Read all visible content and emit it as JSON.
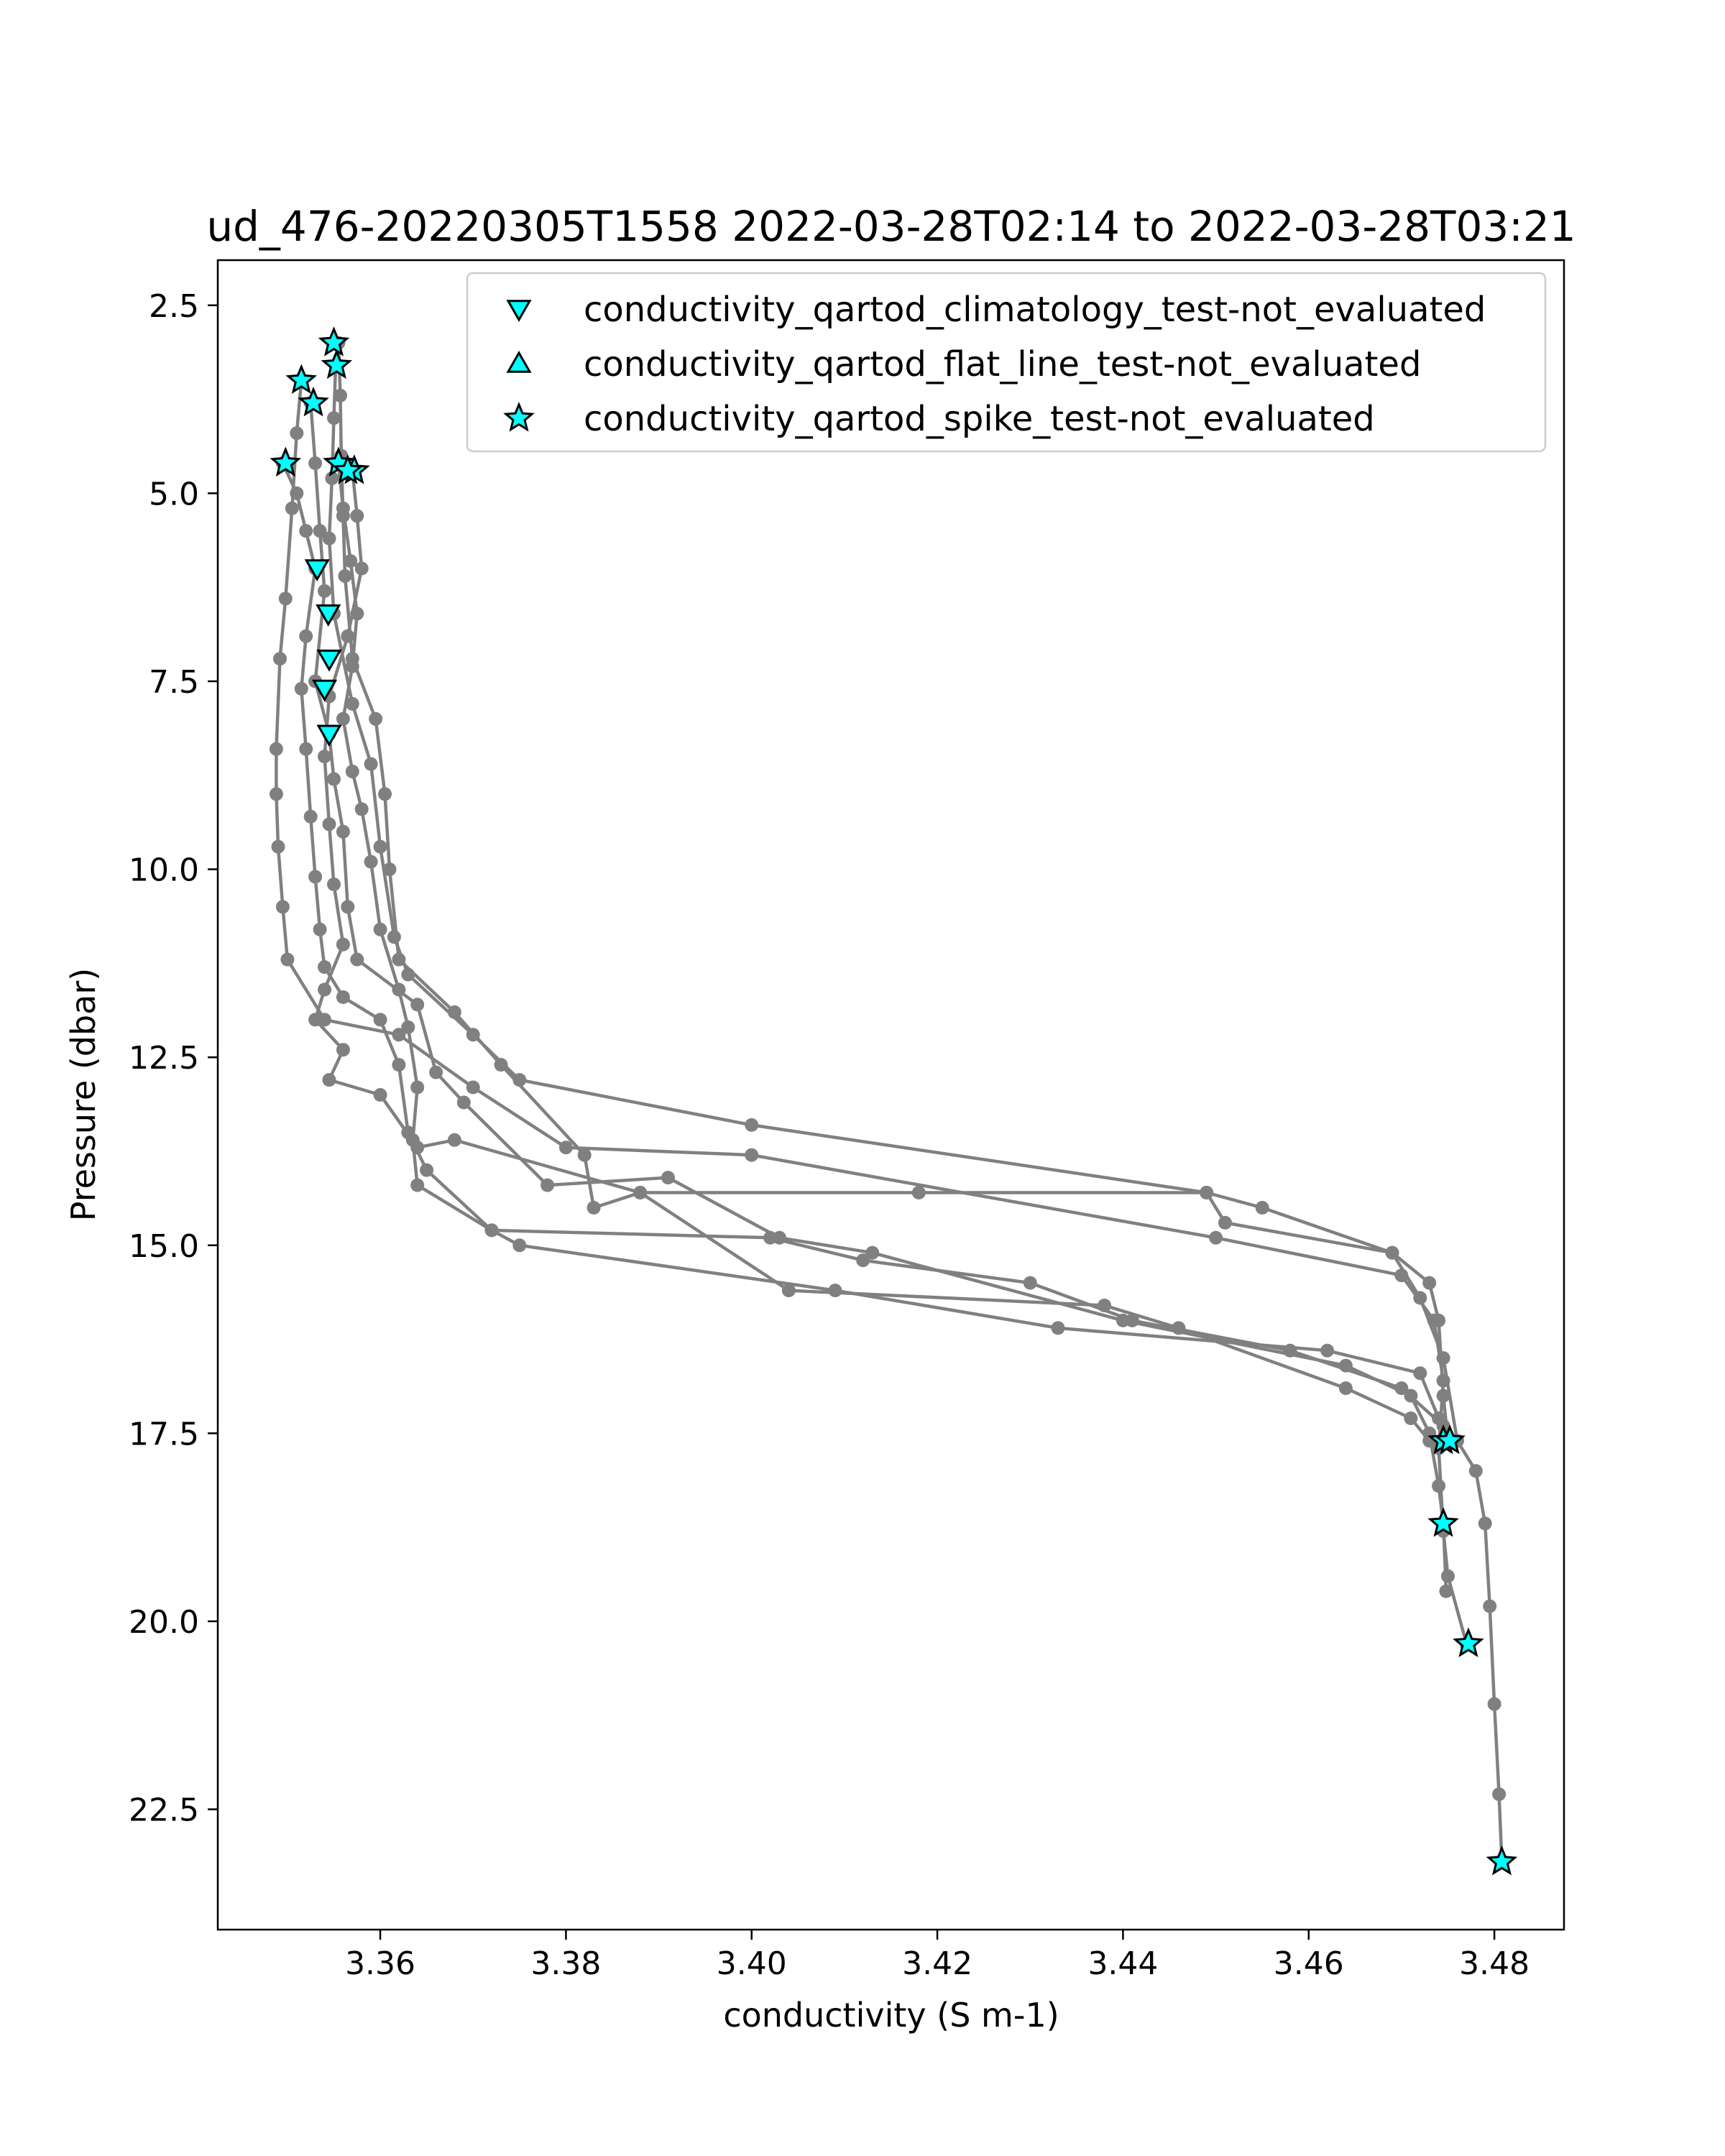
{
  "chart_data": {
    "type": "scatter",
    "title": "ud_476-20220305T1558 2022-03-28T02:14 to 2022-03-28T03:21",
    "xlabel": "conductivity (S m-1)",
    "ylabel": "Pressure (dbar)",
    "xlim": [
      3.3425,
      3.4875
    ],
    "ylim": [
      24.1,
      1.9
    ],
    "y_inverted": true,
    "x_ticks": [
      "3.36",
      "3.38",
      "3.40",
      "3.42",
      "3.44",
      "3.46",
      "3.48"
    ],
    "x_tick_values": [
      3.36,
      3.38,
      3.4,
      3.42,
      3.44,
      3.46,
      3.48
    ],
    "y_ticks": [
      "2.5",
      "5.0",
      "7.5",
      "10.0",
      "12.5",
      "15.0",
      "17.5",
      "20.0",
      "22.5"
    ],
    "y_tick_values": [
      2.5,
      5.0,
      7.5,
      10.0,
      12.5,
      15.0,
      17.5,
      20.0,
      22.5
    ],
    "grid": false,
    "legend_position": "top-right",
    "profile_color": "#808080",
    "marker_color": "#00ffff",
    "series": [
      {
        "kind": "profile",
        "points": [
          [
            3.3555,
            3.0
          ],
          [
            3.3557,
            3.7
          ],
          [
            3.3558,
            4.5
          ],
          [
            3.356,
            5.3
          ],
          [
            3.3562,
            6.1
          ],
          [
            3.357,
            7.2
          ],
          [
            3.3595,
            8.0
          ],
          [
            3.3605,
            9.0
          ],
          [
            3.361,
            10.0
          ],
          [
            3.362,
            11.2
          ],
          [
            3.368,
            11.9
          ],
          [
            3.373,
            12.6
          ],
          [
            3.382,
            13.8
          ],
          [
            3.383,
            14.5
          ],
          [
            3.388,
            14.3
          ],
          [
            3.418,
            14.3
          ],
          [
            3.449,
            14.3
          ],
          [
            3.451,
            14.7
          ],
          [
            3.469,
            15.1
          ],
          [
            3.473,
            15.5
          ],
          [
            3.474,
            16.0
          ],
          [
            3.4745,
            17.0
          ],
          [
            3.475,
            17.6
          ]
        ]
      },
      {
        "kind": "profile",
        "points": [
          [
            3.3552,
            3.3
          ],
          [
            3.355,
            4.0
          ],
          [
            3.3548,
            4.8
          ],
          [
            3.3545,
            5.6
          ],
          [
            3.355,
            6.6
          ],
          [
            3.357,
            7.8
          ],
          [
            3.359,
            8.6
          ],
          [
            3.36,
            9.7
          ],
          [
            3.3615,
            10.9
          ],
          [
            3.363,
            11.4
          ],
          [
            3.37,
            12.2
          ],
          [
            3.375,
            12.8
          ],
          [
            3.4,
            13.4
          ],
          [
            3.449,
            14.3
          ],
          [
            3.455,
            14.5
          ],
          [
            3.469,
            15.1
          ],
          [
            3.472,
            15.7
          ],
          [
            3.4745,
            16.5
          ],
          [
            3.476,
            17.6
          ],
          [
            3.478,
            18.0
          ],
          [
            3.479,
            18.7
          ],
          [
            3.4795,
            19.8
          ],
          [
            3.48,
            21.1
          ],
          [
            3.4805,
            22.3
          ],
          [
            3.4808,
            23.2
          ]
        ]
      },
      {
        "kind": "profile",
        "points": [
          [
            3.3515,
            3.5
          ],
          [
            3.351,
            4.2
          ],
          [
            3.3505,
            5.2
          ],
          [
            3.3498,
            6.4
          ],
          [
            3.3492,
            7.2
          ],
          [
            3.3488,
            8.4
          ],
          [
            3.3488,
            9.0
          ],
          [
            3.349,
            9.7
          ],
          [
            3.3495,
            10.5
          ],
          [
            3.35,
            11.2
          ],
          [
            3.354,
            12.0
          ],
          [
            3.362,
            12.2
          ],
          [
            3.37,
            12.9
          ],
          [
            3.38,
            13.7
          ],
          [
            3.4,
            13.8
          ],
          [
            3.45,
            14.9
          ],
          [
            3.47,
            15.4
          ],
          [
            3.4735,
            16.0
          ],
          [
            3.4745,
            16.8
          ],
          [
            3.474,
            17.7
          ],
          [
            3.4745,
            18.8
          ],
          [
            3.475,
            19.4
          ],
          [
            3.477,
            20.3
          ]
        ]
      },
      {
        "kind": "profile",
        "points": [
          [
            3.3525,
            3.8
          ],
          [
            3.353,
            4.6
          ],
          [
            3.3535,
            5.5
          ],
          [
            3.354,
            6.3
          ],
          [
            3.353,
            7.5
          ],
          [
            3.3545,
            8.2
          ],
          [
            3.355,
            8.8
          ],
          [
            3.356,
            9.5
          ],
          [
            3.3565,
            10.5
          ],
          [
            3.3575,
            11.2
          ],
          [
            3.364,
            11.8
          ],
          [
            3.366,
            12.7
          ],
          [
            3.369,
            13.1
          ],
          [
            3.378,
            14.2
          ],
          [
            3.391,
            14.1
          ],
          [
            3.403,
            14.9
          ],
          [
            3.413,
            15.1
          ],
          [
            3.44,
            16.0
          ],
          [
            3.464,
            16.6
          ],
          [
            3.471,
            17.0
          ],
          [
            3.473,
            17.5
          ],
          [
            3.474,
            18.2
          ],
          [
            3.4745,
            18.7
          ],
          [
            3.4748,
            19.6
          ]
        ]
      },
      {
        "kind": "profile",
        "points": [
          [
            3.3495,
            4.6
          ],
          [
            3.351,
            5.0
          ],
          [
            3.352,
            5.5
          ],
          [
            3.353,
            6.0
          ],
          [
            3.352,
            6.9
          ],
          [
            3.3515,
            7.6
          ],
          [
            3.352,
            8.4
          ],
          [
            3.3525,
            9.3
          ],
          [
            3.353,
            10.1
          ],
          [
            3.3535,
            10.8
          ],
          [
            3.354,
            11.3
          ],
          [
            3.356,
            11.7
          ],
          [
            3.36,
            12.0
          ],
          [
            3.362,
            12.6
          ],
          [
            3.363,
            13.5
          ],
          [
            3.365,
            14.0
          ],
          [
            3.372,
            14.8
          ],
          [
            3.375,
            15.0
          ],
          [
            3.409,
            15.6
          ],
          [
            3.433,
            16.1
          ],
          [
            3.462,
            16.4
          ],
          [
            3.472,
            16.7
          ],
          [
            3.474,
            17.3
          ],
          [
            3.4748,
            17.6
          ]
        ]
      },
      {
        "kind": "profile",
        "points": [
          [
            3.3555,
            4.6
          ],
          [
            3.356,
            5.2
          ],
          [
            3.3568,
            5.9
          ],
          [
            3.3575,
            6.6
          ],
          [
            3.357,
            7.3
          ],
          [
            3.356,
            8.0
          ],
          [
            3.357,
            8.7
          ],
          [
            3.358,
            9.2
          ],
          [
            3.359,
            9.9
          ],
          [
            3.36,
            10.8
          ],
          [
            3.362,
            11.6
          ],
          [
            3.363,
            12.1
          ],
          [
            3.364,
            12.9
          ],
          [
            3.3635,
            13.6
          ],
          [
            3.364,
            14.2
          ],
          [
            3.372,
            14.8
          ],
          [
            3.402,
            14.9
          ],
          [
            3.412,
            15.2
          ],
          [
            3.43,
            15.5
          ],
          [
            3.441,
            16.0
          ],
          [
            3.458,
            16.4
          ],
          [
            3.47,
            16.9
          ],
          [
            3.4745,
            17.4
          ],
          [
            3.4755,
            17.6
          ]
        ]
      },
      {
        "kind": "profile",
        "points": [
          [
            3.357,
            4.7
          ],
          [
            3.3575,
            5.3
          ],
          [
            3.358,
            6.0
          ],
          [
            3.3565,
            6.9
          ],
          [
            3.3545,
            7.7
          ],
          [
            3.354,
            8.5
          ],
          [
            3.3545,
            9.4
          ],
          [
            3.355,
            10.2
          ],
          [
            3.356,
            11.0
          ],
          [
            3.354,
            11.6
          ],
          [
            3.353,
            12.0
          ],
          [
            3.356,
            12.4
          ],
          [
            3.3545,
            12.8
          ],
          [
            3.36,
            13.0
          ],
          [
            3.364,
            13.7
          ],
          [
            3.368,
            13.6
          ],
          [
            3.388,
            14.3
          ],
          [
            3.404,
            15.6
          ],
          [
            3.438,
            15.8
          ],
          [
            3.446,
            16.1
          ],
          [
            3.464,
            16.9
          ],
          [
            3.471,
            17.3
          ],
          [
            3.473,
            17.6
          ]
        ]
      }
    ],
    "markers": [
      {
        "name": "conductivity_qartod_climatology_test-not_evaluated",
        "marker": "triangle-down",
        "points": [
          [
            3.3532,
            6.0
          ],
          [
            3.3544,
            6.6
          ],
          [
            3.3545,
            7.2
          ],
          [
            3.354,
            7.6
          ],
          [
            3.3545,
            8.2
          ]
        ]
      },
      {
        "name": "conductivity_qartod_flat_line_test-not_evaluated",
        "marker": "triangle-up",
        "points": []
      },
      {
        "name": "conductivity_qartod_spike_test-not_evaluated",
        "marker": "star",
        "points": [
          [
            3.355,
            3.0
          ],
          [
            3.3553,
            3.3
          ],
          [
            3.3515,
            3.5
          ],
          [
            3.3528,
            3.8
          ],
          [
            3.3555,
            4.6
          ],
          [
            3.3572,
            4.7
          ],
          [
            3.3498,
            4.6
          ],
          [
            3.3565,
            4.7
          ],
          [
            3.4745,
            17.6
          ],
          [
            3.4752,
            17.6
          ],
          [
            3.4745,
            18.7
          ],
          [
            3.4772,
            20.3
          ],
          [
            3.4808,
            23.2
          ]
        ]
      }
    ],
    "legend": [
      {
        "label": "conductivity_qartod_climatology_test-not_evaluated",
        "marker": "triangle-down"
      },
      {
        "label": "conductivity_qartod_flat_line_test-not_evaluated",
        "marker": "triangle-up"
      },
      {
        "label": "conductivity_qartod_spike_test-not_evaluated",
        "marker": "star"
      }
    ]
  }
}
